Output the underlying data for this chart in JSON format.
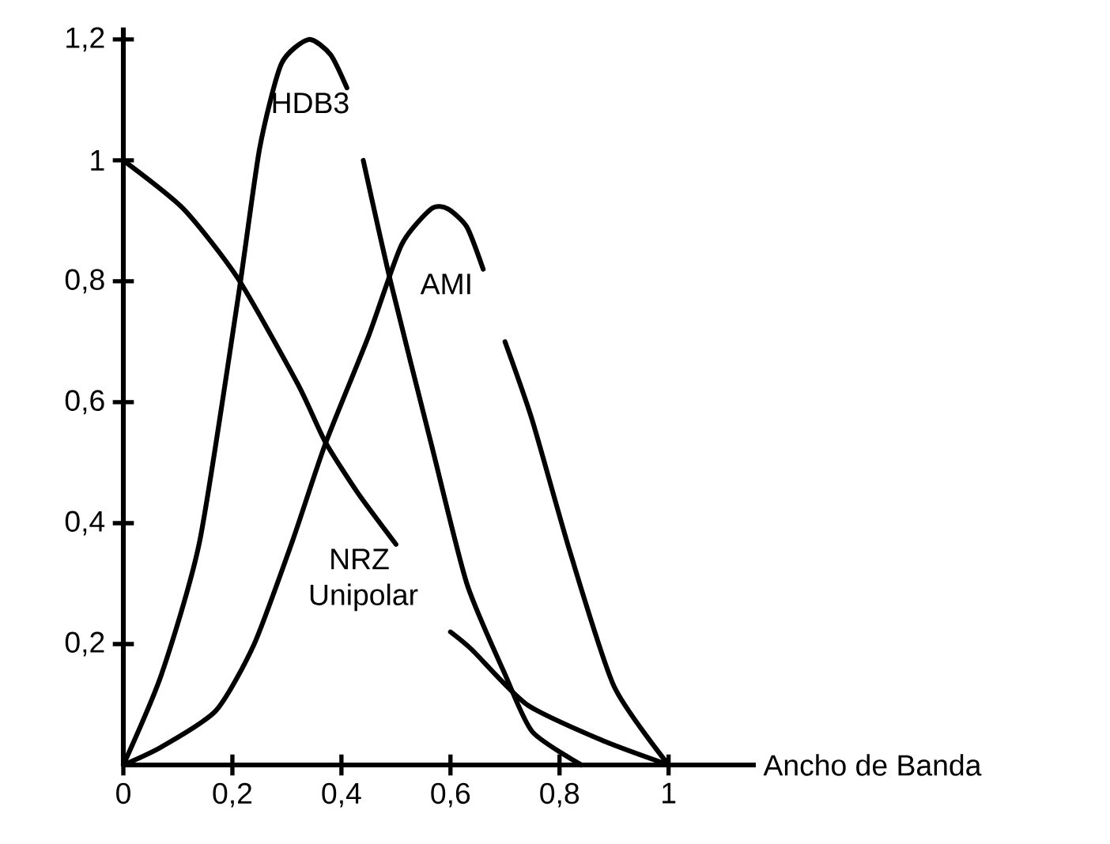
{
  "chart_data": {
    "type": "line",
    "xlabel": "Ancho de Banda",
    "xlim": [
      0,
      1.16
    ],
    "ylim": [
      0,
      1.22
    ],
    "xticks": [
      0,
      {
        "value": 0.2,
        "label": "0,2"
      },
      {
        "value": 0.4,
        "label": "0,4"
      },
      {
        "value": 0.6,
        "label": "0,6"
      },
      {
        "value": 0.8,
        "label": "0,8"
      },
      1
    ],
    "yticks": [
      {
        "value": 0.2,
        "label": "0,2"
      },
      {
        "value": 0.4,
        "label": "0,4"
      },
      {
        "value": 0.6,
        "label": "0,6"
      },
      {
        "value": 0.8,
        "label": "0,8"
      },
      1,
      {
        "value": 1.2,
        "label": "1,2"
      }
    ],
    "series": [
      {
        "name": "HDB3",
        "color": "#000000",
        "x": [
          0,
          0.07,
          0.14,
          0.21,
          0.25,
          0.29,
          0.34,
          0.38,
          0.41,
          0.435,
          0.44,
          0.49,
          0.565,
          0.63,
          0.7,
          0.75,
          0.84
        ],
        "values": [
          0,
          0.15,
          0.37,
          0.77,
          1.02,
          1.16,
          1.2,
          1.175,
          1.12,
          null,
          1.0,
          0.8,
          0.53,
          0.3,
          0.15,
          0.055,
          0
        ]
      },
      {
        "name": "AMI",
        "color": "#000000",
        "x": [
          0,
          0.07,
          0.17,
          0.24,
          0.31,
          0.37,
          0.45,
          0.51,
          0.565,
          0.595,
          0.63,
          0.66,
          0.675,
          0.7,
          0.75,
          0.82,
          0.9,
          1.0
        ],
        "values": [
          0,
          0.03,
          0.09,
          0.2,
          0.37,
          0.53,
          0.71,
          0.86,
          0.92,
          0.92,
          0.89,
          0.82,
          null,
          0.7,
          0.57,
          0.35,
          0.13,
          0
        ]
      },
      {
        "name": "NRZ Unipolar",
        "color": "#000000",
        "x": [
          0,
          0.11,
          0.21,
          0.32,
          0.37,
          0.43,
          0.5,
          0.55,
          0.6,
          0.64,
          0.74,
          0.88,
          1.0
        ],
        "values": [
          1.0,
          0.92,
          0.805,
          0.63,
          0.535,
          0.45,
          0.365,
          null,
          0.22,
          0.19,
          0.1,
          0.04,
          0
        ]
      }
    ]
  }
}
